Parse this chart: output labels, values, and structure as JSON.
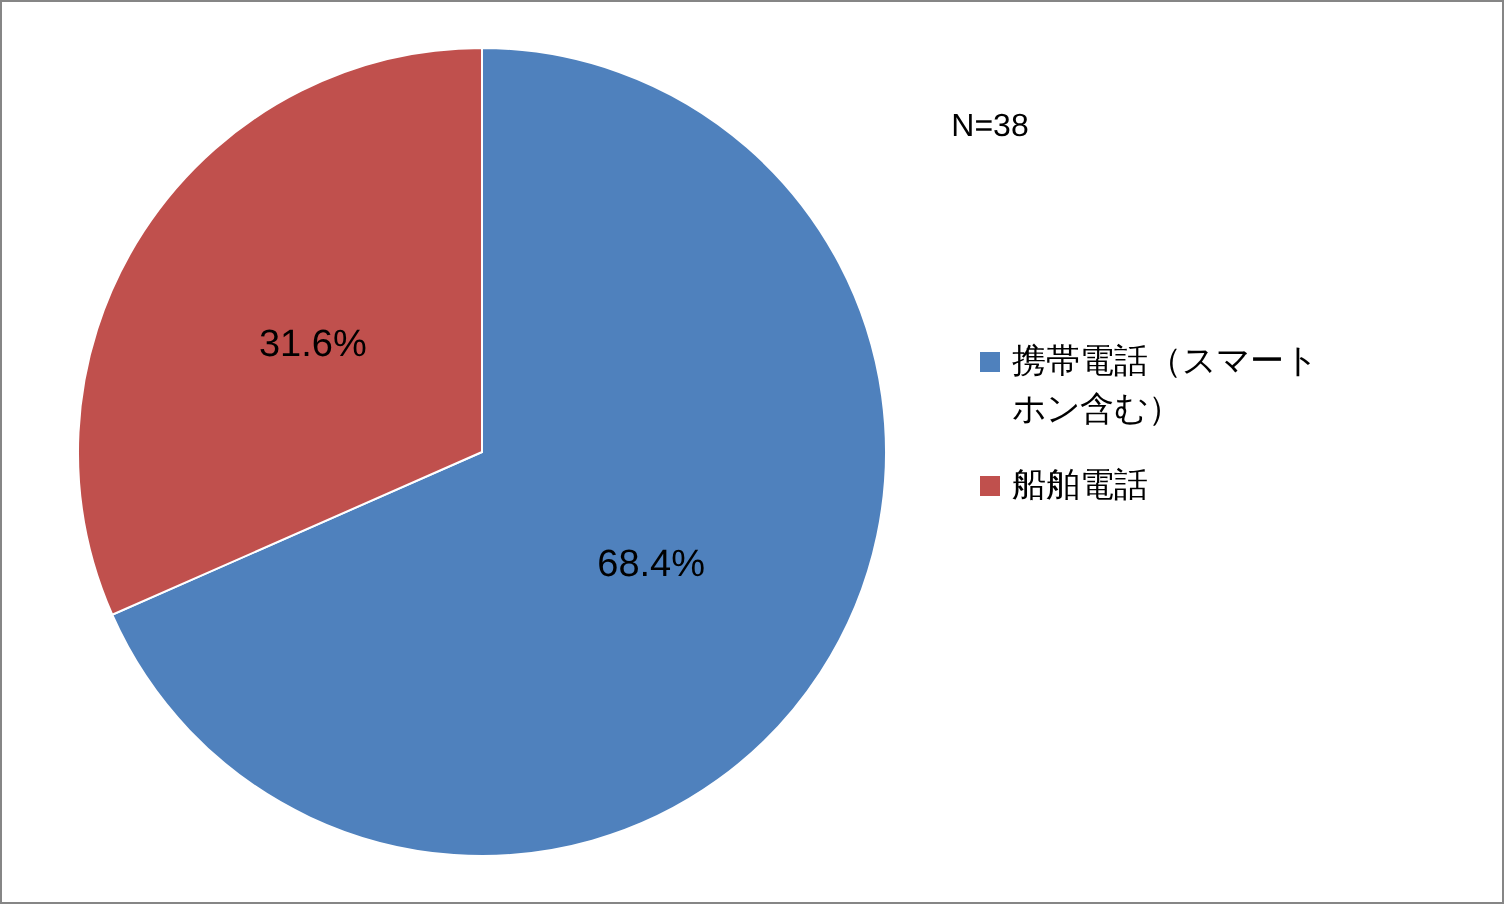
{
  "chart_data": {
    "type": "pie",
    "categories": [
      "携帯電話（スマートホン含む）",
      "船舶電話"
    ],
    "values": [
      68.4,
      31.6
    ],
    "colors": [
      "#4f81bd",
      "#c0504d"
    ],
    "value_labels": [
      "68.4%",
      "31.6%"
    ],
    "legend": "right",
    "annotations": [
      "N=38"
    ]
  }
}
